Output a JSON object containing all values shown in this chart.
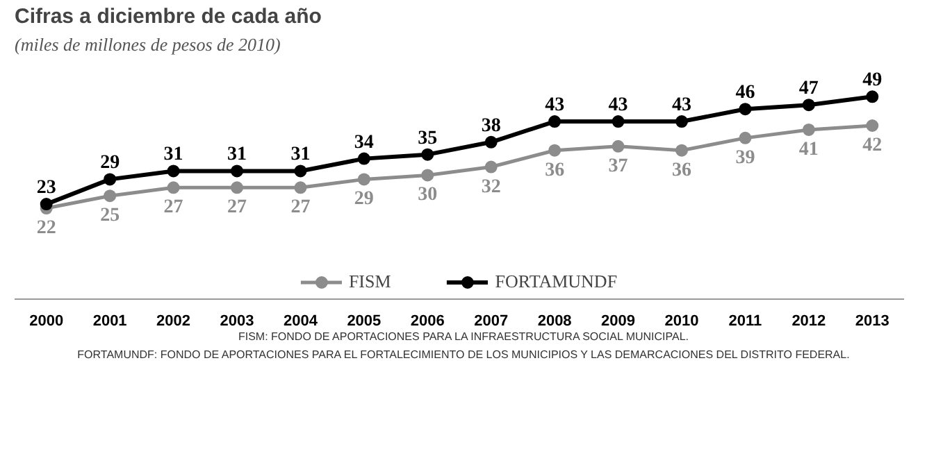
{
  "chart_data": {
    "type": "line",
    "title": "Cifras a diciembre de cada año",
    "subtitle": "(miles de millones de pesos de 2010)",
    "categories": [
      "2000",
      "2001",
      "2002",
      "2003",
      "2004",
      "2005",
      "2006",
      "2007",
      "2008",
      "2009",
      "2010",
      "2011",
      "2012",
      "2013"
    ],
    "series": [
      {
        "name": "FISM",
        "color": "#8c8c8c",
        "values": [
          22,
          25,
          27,
          27,
          27,
          29,
          30,
          32,
          36,
          37,
          36,
          39,
          41,
          42
        ]
      },
      {
        "name": "FORTAMUNDF",
        "color": "#000000",
        "values": [
          23,
          29,
          31,
          31,
          31,
          34,
          35,
          38,
          43,
          43,
          43,
          46,
          47,
          49
        ]
      }
    ],
    "data_labels": true,
    "marker": "circle",
    "line_style": "solid",
    "grid": false,
    "legend": "bottom",
    "tick_labels": "x",
    "annotations": [
      "FISM: FONDO DE APORTACIONES PARA LA INFRAESTRUCTURA SOCIAL MUNICIPAL.",
      "FORTAMUNDF: FONDO DE APORTACIONES PARA EL FORTALECIMIENTO DE LOS MUNICIPIOS Y LAS DEMARCACIONES DEL DISTRITO FEDERAL."
    ]
  }
}
